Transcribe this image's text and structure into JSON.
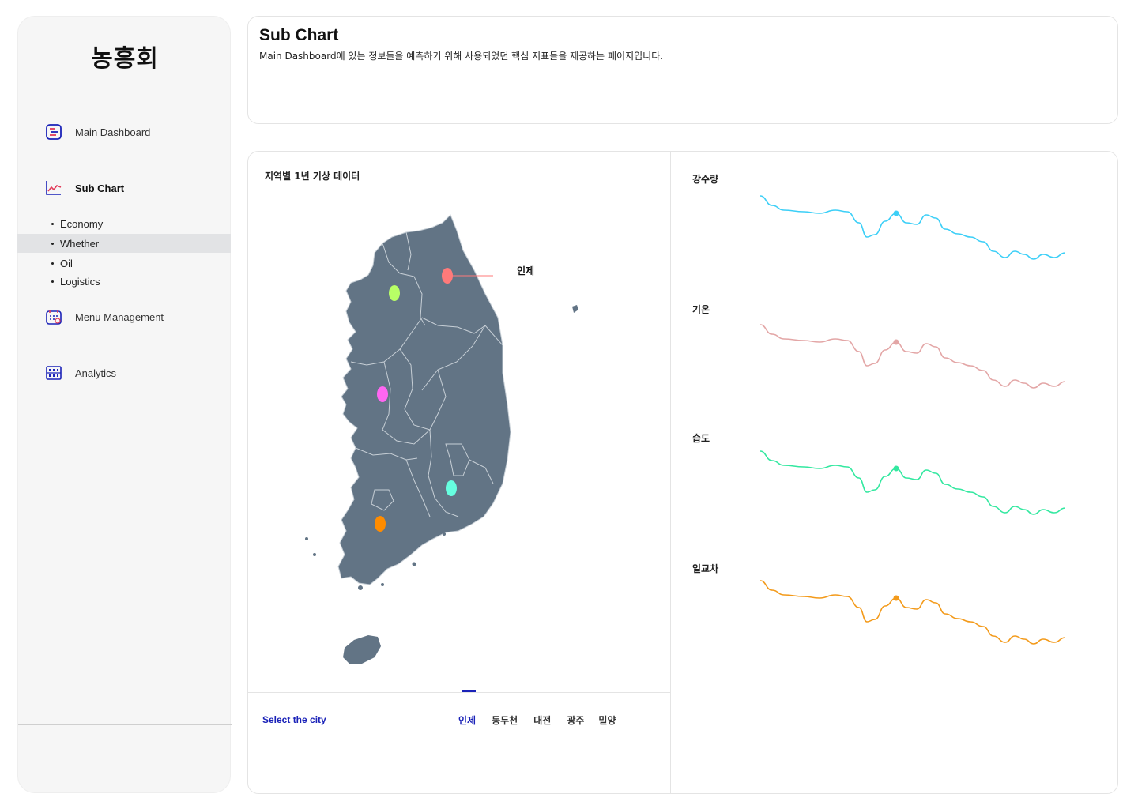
{
  "sidebar": {
    "logo": "농흥회",
    "nav": [
      {
        "label": "Main Dashboard",
        "icon": "dashboard-icon"
      },
      {
        "label": "Sub Chart",
        "icon": "line-chart-icon"
      },
      {
        "label": "Menu Management",
        "icon": "calendar-icon"
      },
      {
        "label": "Analytics",
        "icon": "calculator-icon"
      }
    ],
    "sub_items": [
      {
        "label": "Economy"
      },
      {
        "label": "Whether"
      },
      {
        "label": "Oil"
      },
      {
        "label": "Logistics"
      }
    ],
    "selected_sub": "Whether"
  },
  "header": {
    "title": "Sub Chart",
    "description": "Main Dashboard에 있는 정보들을 예측하기 위해 사용되었던 핵심 지표들을 제공하는 페이지입니다."
  },
  "map_panel": {
    "title": "지역별 1년 기상 데이터",
    "callout": "인제",
    "colors": {
      "land": "#627485",
      "border": "#c7cfd6"
    },
    "markers": [
      {
        "city": "인제",
        "color": "#ff7a7a"
      },
      {
        "city": "동두천",
        "color": "#b8ff66"
      },
      {
        "city": "대전",
        "color": "#ff66f2"
      },
      {
        "city": "밀양",
        "color": "#66ffe0"
      },
      {
        "city": "광주",
        "color": "#ff8c00"
      }
    ]
  },
  "city_selector": {
    "label": "Select the city",
    "tabs": [
      "인제",
      "동두천",
      "대전",
      "광주",
      "밀양"
    ],
    "active": "인제"
  },
  "metrics": [
    {
      "label": "강수량",
      "color": "#3ccff7"
    },
    {
      "label": "기온",
      "color": "#e3a6a6"
    },
    {
      "label": "습도",
      "color": "#33e8a0"
    },
    {
      "label": "일교차",
      "color": "#f39a1a"
    }
  ],
  "accent": "#1a22b8"
}
